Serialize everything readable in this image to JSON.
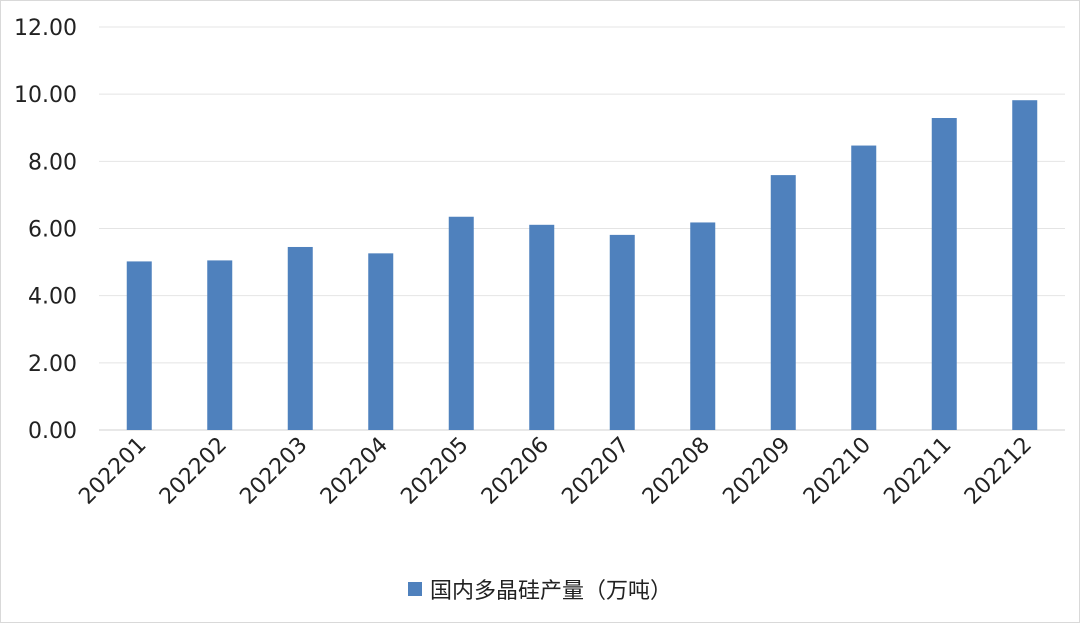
{
  "chart_data": {
    "type": "bar",
    "categories": [
      "202201",
      "202202",
      "202203",
      "202204",
      "202205",
      "202206",
      "202207",
      "202208",
      "202209",
      "202210",
      "202211",
      "202212"
    ],
    "series": [
      {
        "name": "国内多晶硅产量（万吨）",
        "values": [
          5.02,
          5.05,
          5.45,
          5.26,
          6.35,
          6.11,
          5.81,
          6.18,
          7.59,
          8.47,
          9.29,
          9.82
        ],
        "color": "#4f81bd"
      }
    ],
    "y_tick_labels": [
      "0.00",
      "2.00",
      "4.00",
      "6.00",
      "8.00",
      "10.00",
      "12.00"
    ],
    "ylim": [
      0,
      12
    ],
    "grid": true,
    "legend_position": "bottom",
    "title": "",
    "xlabel": "",
    "ylabel": ""
  }
}
